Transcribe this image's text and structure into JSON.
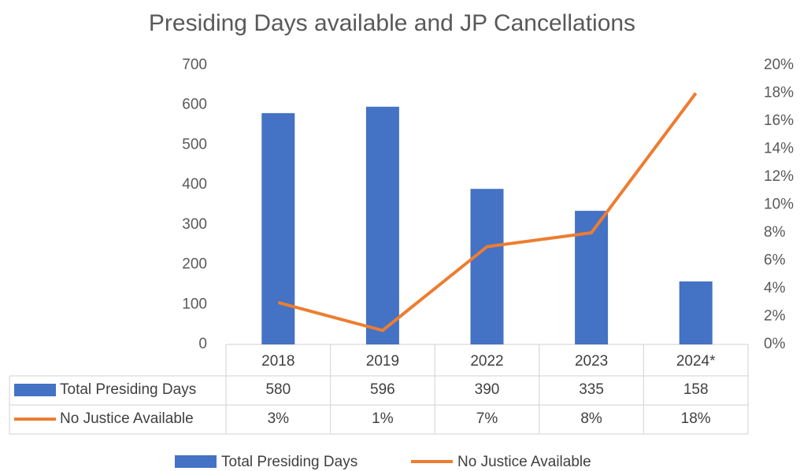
{
  "chart_data": {
    "type": "bar+line",
    "title": "Presiding Days available and JP Cancellations",
    "categories": [
      "2018",
      "2019",
      "2022",
      "2023",
      "2024*"
    ],
    "series": [
      {
        "name": "Total Presiding Days",
        "type": "bar",
        "color": "#4472c4",
        "values": [
          580,
          596,
          390,
          335,
          158
        ]
      },
      {
        "name": "No Justice Available",
        "type": "line",
        "axis": "y2",
        "color": "#ed7d31",
        "values": [
          3,
          1,
          7,
          8,
          18
        ],
        "value_labels": [
          "3%",
          "1%",
          "7%",
          "8%",
          "18%"
        ]
      }
    ],
    "ylim": [
      0,
      700
    ],
    "yticks": [
      0,
      100,
      200,
      300,
      400,
      500,
      600,
      700
    ],
    "y2lim": [
      0,
      20
    ],
    "y2ticks": [
      {
        "value": 0,
        "label": "0%"
      },
      {
        "value": 2,
        "label": "2%"
      },
      {
        "value": 4,
        "label": "4%"
      },
      {
        "value": 6,
        "label": "6%"
      },
      {
        "value": 8,
        "label": "8%"
      },
      {
        "value": 10,
        "label": "10%"
      },
      {
        "value": 12,
        "label": "12%"
      },
      {
        "value": 14,
        "label": "14%"
      },
      {
        "value": 16,
        "label": "16%"
      },
      {
        "value": 18,
        "label": "18%"
      },
      {
        "value": 20,
        "label": "20%"
      }
    ],
    "grid": false,
    "legend": "bottom",
    "data_table": true
  }
}
